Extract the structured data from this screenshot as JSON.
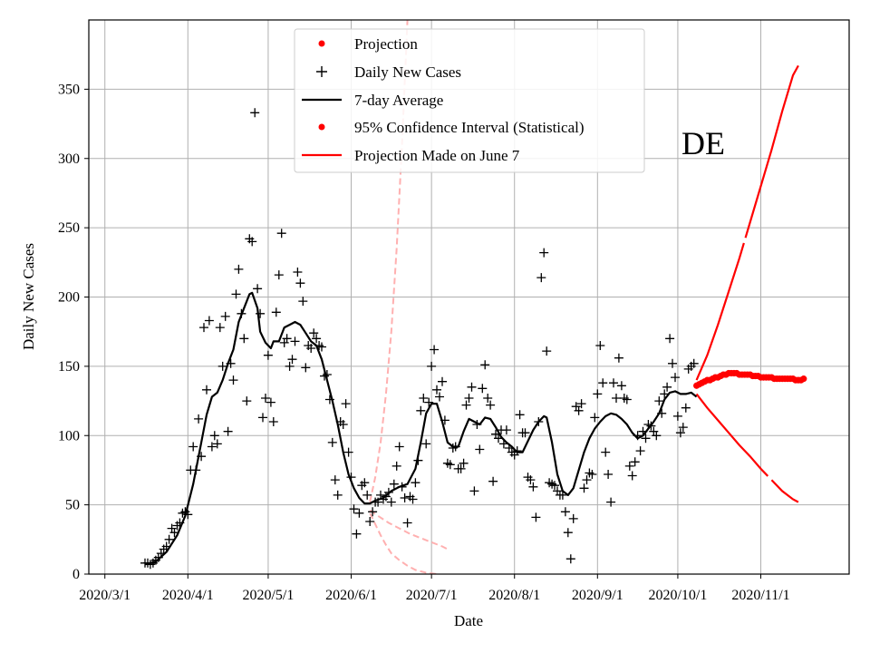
{
  "chart_data": {
    "type": "line",
    "region": "DE",
    "xlabel": "Date",
    "ylabel": "Daily New Cases",
    "xlim": [
      -6,
      278
    ],
    "ylim": [
      0,
      400
    ],
    "grid": true,
    "legend_position": "top-center",
    "x_ticks": [
      {
        "day": 0,
        "label": "2020/3/1"
      },
      {
        "day": 31,
        "label": "2020/4/1"
      },
      {
        "day": 61,
        "label": "2020/5/1"
      },
      {
        "day": 92,
        "label": "2020/6/1"
      },
      {
        "day": 122,
        "label": "2020/7/1"
      },
      {
        "day": 153,
        "label": "2020/8/1"
      },
      {
        "day": 184,
        "label": "2020/9/1"
      },
      {
        "day": 214,
        "label": "2020/10/1"
      },
      {
        "day": 245,
        "label": "2020/11/1"
      }
    ],
    "y_ticks": [
      0,
      50,
      100,
      150,
      200,
      250,
      300,
      350
    ],
    "legend": [
      {
        "label": "Projection",
        "style": "dot",
        "color": "#ff0000"
      },
      {
        "label": "Daily New Cases",
        "style": "plus",
        "color": "#000000"
      },
      {
        "label": "7-day Average",
        "style": "line",
        "color": "#000000"
      },
      {
        "label": "95% Confidence Interval (Statistical)",
        "style": "dot",
        "color": "#ff0000"
      },
      {
        "label": "Projection Made on June 7",
        "style": "line",
        "color": "#ff0000"
      }
    ],
    "daily_new_cases": [
      [
        15,
        8
      ],
      [
        16,
        8
      ],
      [
        17,
        7
      ],
      [
        18,
        8
      ],
      [
        19,
        10
      ],
      [
        20,
        12
      ],
      [
        21,
        15
      ],
      [
        22,
        18
      ],
      [
        23,
        20
      ],
      [
        24,
        25
      ],
      [
        25,
        33
      ],
      [
        26,
        30
      ],
      [
        27,
        35
      ],
      [
        28,
        37
      ],
      [
        29,
        44
      ],
      [
        30,
        45
      ],
      [
        31,
        43
      ],
      [
        32,
        75
      ],
      [
        33,
        92
      ],
      [
        34,
        75
      ],
      [
        35,
        112
      ],
      [
        36,
        85
      ],
      [
        37,
        178
      ],
      [
        38,
        133
      ],
      [
        39,
        183
      ],
      [
        40,
        92
      ],
      [
        41,
        100
      ],
      [
        42,
        94
      ],
      [
        43,
        178
      ],
      [
        44,
        150
      ],
      [
        45,
        186
      ],
      [
        46,
        103
      ],
      [
        47,
        152
      ],
      [
        48,
        140
      ],
      [
        49,
        202
      ],
      [
        50,
        220
      ],
      [
        51,
        188
      ],
      [
        52,
        170
      ],
      [
        53,
        125
      ],
      [
        54,
        242
      ],
      [
        55,
        240
      ],
      [
        56,
        333
      ],
      [
        57,
        206
      ],
      [
        58,
        188
      ],
      [
        59,
        113
      ],
      [
        60,
        127
      ],
      [
        61,
        158
      ],
      [
        62,
        124
      ],
      [
        63,
        110
      ],
      [
        64,
        189
      ],
      [
        65,
        216
      ],
      [
        66,
        246
      ],
      [
        67,
        167
      ],
      [
        68,
        170
      ],
      [
        69,
        150
      ],
      [
        70,
        155
      ],
      [
        71,
        168
      ],
      [
        72,
        218
      ],
      [
        73,
        210
      ],
      [
        74,
        197
      ],
      [
        75,
        149
      ],
      [
        76,
        165
      ],
      [
        77,
        163
      ],
      [
        78,
        174
      ],
      [
        79,
        170
      ],
      [
        80,
        165
      ],
      [
        81,
        164
      ],
      [
        82,
        143
      ],
      [
        83,
        144
      ],
      [
        84,
        126
      ],
      [
        85,
        95
      ],
      [
        86,
        68
      ],
      [
        87,
        57
      ],
      [
        88,
        110
      ],
      [
        89,
        108
      ],
      [
        90,
        123
      ],
      [
        91,
        88
      ],
      [
        92,
        70
      ],
      [
        93,
        47
      ],
      [
        94,
        29
      ],
      [
        95,
        44
      ],
      [
        96,
        64
      ],
      [
        97,
        66
      ],
      [
        98,
        57
      ],
      [
        99,
        38
      ],
      [
        100,
        45
      ],
      [
        101,
        52
      ],
      [
        102,
        52
      ],
      [
        103,
        57
      ],
      [
        104,
        54
      ],
      [
        105,
        56
      ],
      [
        106,
        59
      ],
      [
        107,
        52
      ],
      [
        108,
        65
      ],
      [
        109,
        78
      ],
      [
        110,
        92
      ],
      [
        111,
        63
      ],
      [
        112,
        55
      ],
      [
        113,
        37
      ],
      [
        114,
        56
      ],
      [
        115,
        54
      ],
      [
        116,
        66
      ],
      [
        117,
        82
      ],
      [
        118,
        118
      ],
      [
        119,
        127
      ],
      [
        120,
        94
      ],
      [
        121,
        124
      ],
      [
        122,
        150
      ],
      [
        123,
        162
      ],
      [
        124,
        133
      ],
      [
        125,
        128
      ],
      [
        126,
        139
      ],
      [
        127,
        111
      ],
      [
        128,
        80
      ],
      [
        129,
        79
      ],
      [
        130,
        91
      ],
      [
        131,
        92
      ],
      [
        132,
        76
      ],
      [
        133,
        76
      ],
      [
        134,
        80
      ],
      [
        135,
        122
      ],
      [
        136,
        127
      ],
      [
        137,
        135
      ],
      [
        138,
        60
      ],
      [
        139,
        108
      ],
      [
        140,
        90
      ],
      [
        141,
        134
      ],
      [
        142,
        151
      ],
      [
        143,
        127
      ],
      [
        144,
        122
      ],
      [
        145,
        67
      ],
      [
        146,
        101
      ],
      [
        147,
        98
      ],
      [
        148,
        104
      ],
      [
        149,
        94
      ],
      [
        150,
        104
      ],
      [
        151,
        91
      ],
      [
        152,
        88
      ],
      [
        153,
        86
      ],
      [
        154,
        89
      ],
      [
        155,
        115
      ],
      [
        156,
        102
      ],
      [
        157,
        102
      ],
      [
        158,
        70
      ],
      [
        159,
        68
      ],
      [
        160,
        63
      ],
      [
        161,
        41
      ],
      [
        162,
        110
      ],
      [
        163,
        214
      ],
      [
        164,
        232
      ],
      [
        165,
        161
      ],
      [
        166,
        66
      ],
      [
        167,
        65
      ],
      [
        168,
        64
      ],
      [
        169,
        60
      ],
      [
        170,
        57
      ],
      [
        171,
        57
      ],
      [
        172,
        45
      ],
      [
        173,
        30
      ],
      [
        174,
        11
      ],
      [
        175,
        40
      ],
      [
        176,
        121
      ],
      [
        177,
        118
      ],
      [
        178,
        123
      ],
      [
        179,
        62
      ],
      [
        180,
        68
      ],
      [
        181,
        73
      ],
      [
        182,
        72
      ],
      [
        183,
        113
      ],
      [
        184,
        130
      ],
      [
        185,
        165
      ],
      [
        186,
        138
      ],
      [
        187,
        88
      ],
      [
        188,
        72
      ],
      [
        189,
        52
      ],
      [
        190,
        138
      ],
      [
        191,
        127
      ],
      [
        192,
        156
      ],
      [
        193,
        136
      ],
      [
        194,
        127
      ],
      [
        195,
        126
      ],
      [
        196,
        78
      ],
      [
        197,
        71
      ],
      [
        198,
        81
      ],
      [
        199,
        100
      ],
      [
        200,
        89
      ],
      [
        201,
        103
      ],
      [
        202,
        98
      ],
      [
        203,
        108
      ],
      [
        204,
        107
      ],
      [
        205,
        103
      ],
      [
        206,
        100
      ],
      [
        207,
        125
      ],
      [
        208,
        116
      ],
      [
        209,
        130
      ],
      [
        210,
        135
      ],
      [
        211,
        170
      ],
      [
        212,
        152
      ],
      [
        213,
        142
      ],
      [
        214,
        114
      ],
      [
        215,
        102
      ],
      [
        216,
        106
      ],
      [
        217,
        120
      ],
      [
        218,
        148
      ],
      [
        219,
        150
      ],
      [
        220,
        152
      ]
    ],
    "seven_day_average": [
      [
        15,
        7
      ],
      [
        19,
        9
      ],
      [
        23,
        16
      ],
      [
        27,
        28
      ],
      [
        30,
        42
      ],
      [
        33,
        65
      ],
      [
        36,
        95
      ],
      [
        38,
        115
      ],
      [
        40,
        128
      ],
      [
        42,
        131
      ],
      [
        44,
        140
      ],
      [
        46,
        152
      ],
      [
        48,
        162
      ],
      [
        50,
        182
      ],
      [
        52,
        192
      ],
      [
        54,
        202
      ],
      [
        55,
        203
      ],
      [
        57,
        192
      ],
      [
        58,
        175
      ],
      [
        60,
        167
      ],
      [
        62,
        163
      ],
      [
        63,
        168
      ],
      [
        65,
        168
      ],
      [
        67,
        178
      ],
      [
        69,
        180
      ],
      [
        71,
        182
      ],
      [
        73,
        180
      ],
      [
        75,
        174
      ],
      [
        77,
        168
      ],
      [
        79,
        165
      ],
      [
        81,
        155
      ],
      [
        83,
        140
      ],
      [
        85,
        125
      ],
      [
        87,
        108
      ],
      [
        89,
        88
      ],
      [
        91,
        72
      ],
      [
        93,
        62
      ],
      [
        95,
        55
      ],
      [
        97,
        51
      ],
      [
        99,
        51
      ],
      [
        101,
        53
      ],
      [
        104,
        55
      ],
      [
        107,
        60
      ],
      [
        110,
        63
      ],
      [
        113,
        65
      ],
      [
        116,
        76
      ],
      [
        118,
        95
      ],
      [
        120,
        116
      ],
      [
        122,
        123
      ],
      [
        124,
        123
      ],
      [
        126,
        110
      ],
      [
        128,
        95
      ],
      [
        130,
        92
      ],
      [
        132,
        92
      ],
      [
        134,
        103
      ],
      [
        136,
        112
      ],
      [
        138,
        110
      ],
      [
        140,
        108
      ],
      [
        142,
        113
      ],
      [
        144,
        112
      ],
      [
        146,
        106
      ],
      [
        148,
        99
      ],
      [
        150,
        95
      ],
      [
        152,
        92
      ],
      [
        154,
        88
      ],
      [
        156,
        88
      ],
      [
        158,
        96
      ],
      [
        160,
        104
      ],
      [
        162,
        110
      ],
      [
        164,
        114
      ],
      [
        165,
        113
      ],
      [
        167,
        95
      ],
      [
        169,
        72
      ],
      [
        171,
        60
      ],
      [
        173,
        57
      ],
      [
        175,
        62
      ],
      [
        177,
        75
      ],
      [
        179,
        88
      ],
      [
        181,
        98
      ],
      [
        183,
        105
      ],
      [
        185,
        110
      ],
      [
        187,
        114
      ],
      [
        189,
        116
      ],
      [
        191,
        115
      ],
      [
        193,
        112
      ],
      [
        195,
        108
      ],
      [
        197,
        102
      ],
      [
        199,
        98
      ],
      [
        201,
        100
      ],
      [
        203,
        105
      ],
      [
        205,
        110
      ],
      [
        207,
        116
      ],
      [
        209,
        126
      ],
      [
        211,
        131
      ],
      [
        213,
        132
      ],
      [
        215,
        130
      ],
      [
        217,
        130
      ],
      [
        219,
        131
      ],
      [
        221,
        128
      ]
    ],
    "projection": [
      [
        221,
        136
      ],
      [
        222,
        137
      ],
      [
        223,
        138
      ],
      [
        224,
        139
      ],
      [
        225,
        140
      ],
      [
        226,
        140
      ],
      [
        227,
        141
      ],
      [
        228,
        142
      ],
      [
        229,
        142
      ],
      [
        230,
        143
      ],
      [
        231,
        144
      ],
      [
        232,
        144
      ],
      [
        233,
        145
      ],
      [
        234,
        145
      ],
      [
        235,
        145
      ],
      [
        236,
        145
      ],
      [
        237,
        144
      ],
      [
        238,
        144
      ],
      [
        239,
        144
      ],
      [
        240,
        144
      ],
      [
        241,
        144
      ],
      [
        242,
        143
      ],
      [
        243,
        143
      ],
      [
        244,
        143
      ],
      [
        245,
        142
      ],
      [
        246,
        142
      ],
      [
        247,
        142
      ],
      [
        248,
        142
      ],
      [
        249,
        142
      ],
      [
        250,
        141
      ],
      [
        251,
        141
      ],
      [
        252,
        141
      ],
      [
        253,
        141
      ],
      [
        254,
        141
      ],
      [
        255,
        141
      ],
      [
        256,
        141
      ],
      [
        257,
        141
      ],
      [
        258,
        140
      ],
      [
        259,
        140
      ],
      [
        260,
        140
      ],
      [
        261,
        141
      ]
    ],
    "confidence_interval_upper": [
      [
        221,
        140
      ],
      [
        225,
        158
      ],
      [
        229,
        180
      ],
      [
        233,
        204
      ],
      [
        237,
        228
      ],
      [
        241,
        254
      ],
      [
        245,
        280
      ],
      [
        249,
        306
      ],
      [
        253,
        334
      ],
      [
        257,
        360
      ],
      [
        259,
        367
      ]
    ],
    "confidence_interval_lower": [
      [
        221,
        130
      ],
      [
        225,
        120
      ],
      [
        229,
        111
      ],
      [
        233,
        102
      ],
      [
        237,
        93
      ],
      [
        241,
        85
      ],
      [
        245,
        76
      ],
      [
        249,
        68
      ],
      [
        253,
        60
      ],
      [
        257,
        54
      ],
      [
        259,
        52
      ]
    ],
    "projection_june7_upper": [
      [
        99,
        52
      ],
      [
        101,
        70
      ],
      [
        103,
        95
      ],
      [
        105,
        130
      ],
      [
        107,
        175
      ],
      [
        109,
        235
      ],
      [
        111,
        310
      ],
      [
        113,
        400
      ]
    ],
    "projection_june7_middle": [
      [
        99,
        46
      ],
      [
        102,
        42
      ],
      [
        106,
        37
      ],
      [
        110,
        33
      ],
      [
        114,
        29
      ],
      [
        118,
        26
      ],
      [
        122,
        23
      ],
      [
        126,
        20
      ],
      [
        128,
        18
      ]
    ],
    "projection_june7_lower": [
      [
        99,
        44
      ],
      [
        101,
        36
      ],
      [
        103,
        28
      ],
      [
        105,
        21
      ],
      [
        107,
        15
      ],
      [
        110,
        10
      ],
      [
        113,
        6
      ],
      [
        116,
        3
      ],
      [
        120,
        1
      ],
      [
        124,
        0
      ]
    ]
  }
}
